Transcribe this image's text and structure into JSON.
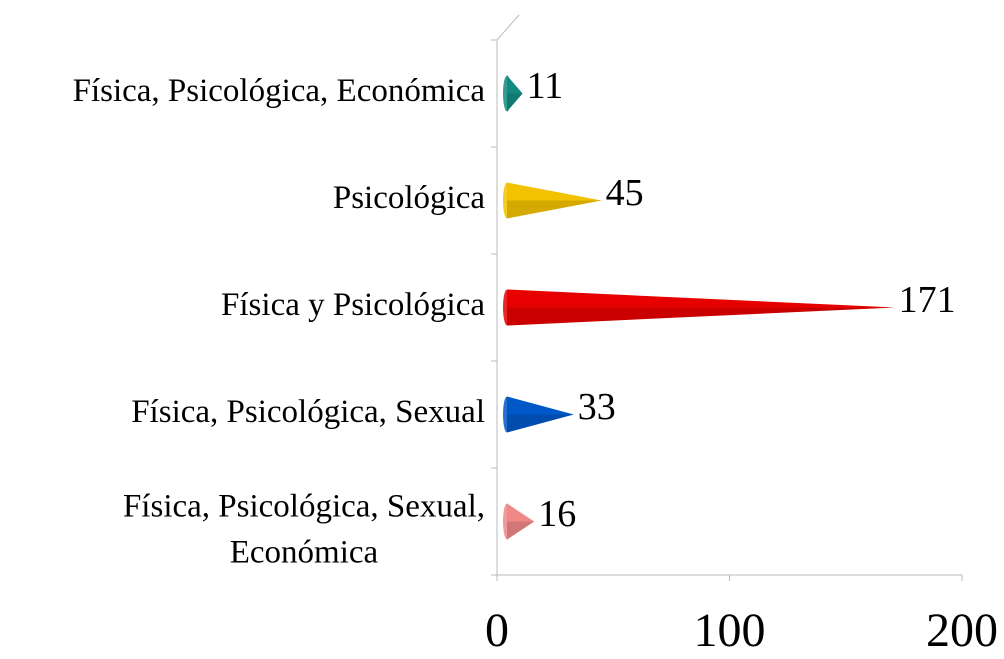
{
  "chart_data": {
    "type": "bar",
    "orientation": "horizontal",
    "categories": [
      "Física, Psicológica, Económica",
      "Psicológica",
      "Física y Psicológica",
      "Física, Psicológica, Sexual",
      "Física, Psicológica, Sexual, Económica"
    ],
    "values": [
      11,
      45,
      171,
      33,
      16
    ],
    "colors": [
      "#138a80",
      "#f2c200",
      "#e60000",
      "#0058c8",
      "#f08888"
    ],
    "xlim": [
      0,
      200
    ],
    "xticks": [
      0,
      100,
      200
    ],
    "grid": false
  }
}
